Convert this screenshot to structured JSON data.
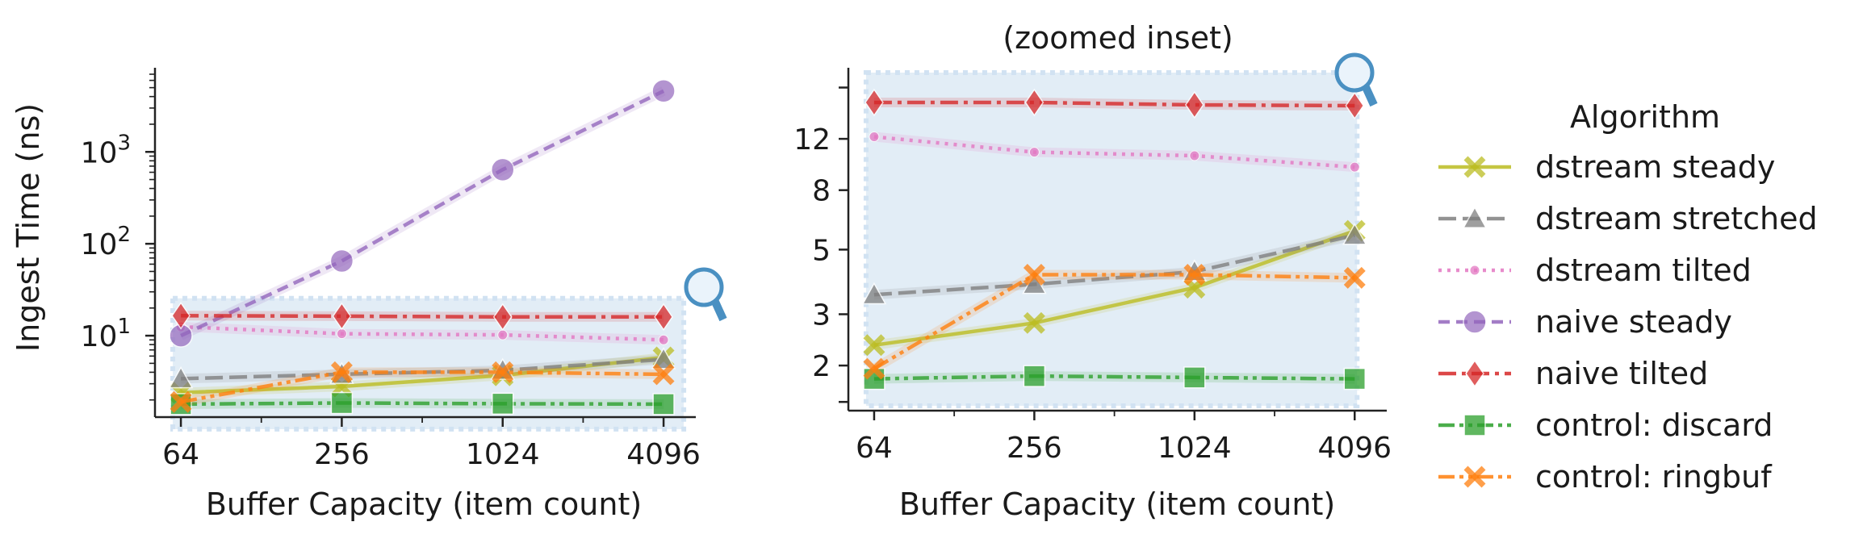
{
  "chart_data": [
    {
      "type": "line",
      "title": "",
      "xlabel": "Buffer Capacity (item count)",
      "ylabel": "Ingest Time (ns)",
      "x_scale": "log2",
      "y_scale": "log10",
      "x": [
        64,
        256,
        1024,
        4096
      ],
      "xtick_labels": [
        "64",
        "256",
        "1024",
        "4096"
      ],
      "ylim": [
        1.3,
        7000
      ],
      "yticks": [
        10,
        100,
        1000
      ],
      "ytick_base": "10",
      "ytick_exponents": [
        "1",
        "2",
        "3"
      ],
      "inset_region": {
        "x": [
          64,
          4096
        ],
        "y": [
          1.5,
          20
        ]
      },
      "series": [
        {
          "name": "dstream steady",
          "values": [
            2.4,
            2.8,
            3.7,
            5.8
          ],
          "color": "#bcbd22",
          "marker": "x"
        },
        {
          "name": "dstream stretched",
          "values": [
            3.4,
            3.8,
            4.2,
            5.5
          ],
          "color": "#7f7f7f",
          "marker": "triangle"
        },
        {
          "name": "dstream tilted",
          "values": [
            12.5,
            10.5,
            10.2,
            9.0
          ],
          "color": "#e377c2",
          "marker": "dot"
        },
        {
          "name": "naive steady",
          "values": [
            10,
            65,
            640,
            4600
          ],
          "color": "#9467bd",
          "marker": "circle"
        },
        {
          "name": "naive tilted",
          "values": [
            16.5,
            16.3,
            16,
            16
          ],
          "color": "#d62728",
          "marker": "diamond"
        },
        {
          "name": "control: discard",
          "values": [
            1.8,
            1.85,
            1.82,
            1.8
          ],
          "color": "#2ca02c",
          "marker": "square"
        },
        {
          "name": "control: ringbuf",
          "values": [
            1.9,
            4.0,
            4.0,
            3.8
          ],
          "color": "#ff7f0e",
          "marker": "x"
        }
      ]
    },
    {
      "type": "line",
      "title": "(zoomed inset)",
      "xlabel": "Buffer Capacity (item count)",
      "ylabel": "",
      "x_scale": "log2",
      "y_scale": "log",
      "x": [
        64,
        256,
        1024,
        4096
      ],
      "xtick_labels": [
        "64",
        "256",
        "1024",
        "4096"
      ],
      "ylim": [
        1.4,
        20
      ],
      "yticks": [
        2,
        3,
        5,
        8,
        12
      ],
      "ytick_labels": [
        "2",
        "3",
        "5",
        "8",
        "12"
      ],
      "series": [
        {
          "name": "dstream steady",
          "values": [
            2.35,
            2.8,
            3.7,
            5.8
          ],
          "color": "#bcbd22",
          "marker": "x"
        },
        {
          "name": "dstream stretched",
          "values": [
            3.5,
            3.8,
            4.2,
            5.6
          ],
          "color": "#7f7f7f",
          "marker": "triangle"
        },
        {
          "name": "dstream tilted",
          "values": [
            12.2,
            10.8,
            10.5,
            9.6
          ],
          "color": "#e377c2",
          "marker": "dot"
        },
        {
          "name": "naive tilted",
          "values": [
            16.0,
            16.0,
            15.7,
            15.6
          ],
          "color": "#d62728",
          "marker": "diamond"
        },
        {
          "name": "control: discard",
          "values": [
            1.8,
            1.84,
            1.82,
            1.8
          ],
          "color": "#2ca02c",
          "marker": "square"
        },
        {
          "name": "control: ringbuf",
          "values": [
            1.95,
            4.1,
            4.1,
            4.0
          ],
          "color": "#ff7f0e",
          "marker": "x"
        }
      ]
    }
  ],
  "legend": {
    "title": "Algorithm",
    "placement": "right",
    "items": [
      {
        "label": "dstream steady",
        "color": "#bcbd22",
        "marker": "x",
        "dash": "solid"
      },
      {
        "label": "dstream stretched",
        "color": "#7f7f7f",
        "marker": "triangle",
        "dash": "dash"
      },
      {
        "label": "dstream tilted",
        "color": "#e377c2",
        "marker": "dot",
        "dash": "dot"
      },
      {
        "label": "naive steady",
        "color": "#9467bd",
        "marker": "circle",
        "dash": "dashlong"
      },
      {
        "label": "naive tilted",
        "color": "#d62728",
        "marker": "diamond",
        "dash": "dashdot"
      },
      {
        "label": "control: discard",
        "color": "#2ca02c",
        "marker": "square",
        "dash": "dashdotdot"
      },
      {
        "label": "control: ringbuf",
        "color": "#ff7f0e",
        "marker": "x",
        "dash": "dashdotdot"
      }
    ]
  },
  "inset_marker": {
    "icon": "magnifier-icon",
    "color": "#4a90c2"
  }
}
